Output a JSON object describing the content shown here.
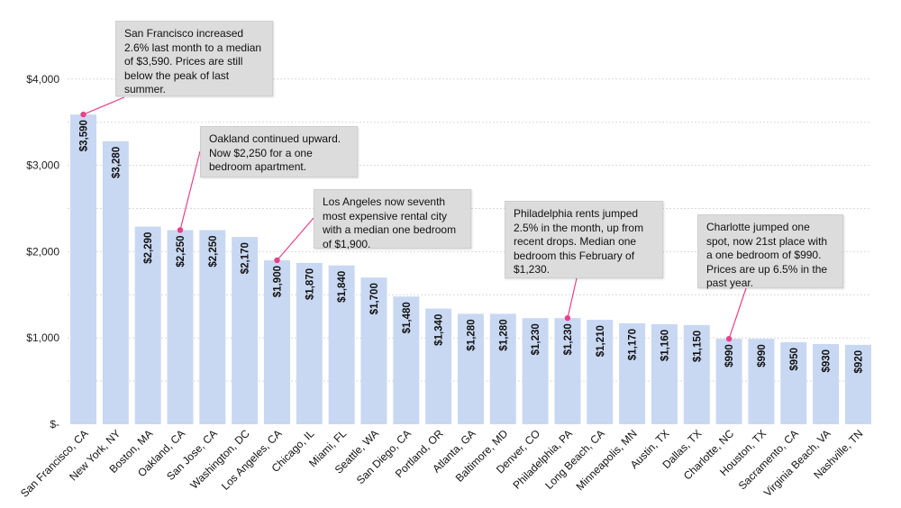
{
  "chart_data": {
    "type": "bar",
    "title": "",
    "xlabel": "",
    "ylabel": "",
    "ylim": [
      0,
      4000
    ],
    "yticks": [
      0,
      1000,
      2000,
      3000,
      4000
    ],
    "ytick_labels": [
      "$-",
      "$1,000",
      "$2,000",
      "$3,000",
      "$4,000"
    ],
    "grid": true,
    "bar_color": "#c9d8f2",
    "accent_color": "#e8418a",
    "categories": [
      "San Francisco, CA",
      "New York, NY",
      "Boston, MA",
      "Oakland, CA",
      "San Jose, CA",
      "Washington, DC",
      "Los Angeles, CA",
      "Chicago, IL",
      "Miami, FL",
      "Seattle, WA",
      "San Diego, CA",
      "Portland, OR",
      "Atlanta, GA",
      "Baltimore, MD",
      "Denver, CO",
      "Philadelphia, PA",
      "Long Beach, CA",
      "Minneapolis, MN",
      "Austin, TX",
      "Dallas, TX",
      "Charlotte, NC",
      "Houston, TX",
      "Sacramento, CA",
      "Virginia Beach, VA",
      "Nashville, TN"
    ],
    "values": [
      3590,
      3280,
      2290,
      2250,
      2250,
      2170,
      1900,
      1870,
      1840,
      1700,
      1480,
      1340,
      1280,
      1280,
      1230,
      1230,
      1210,
      1170,
      1160,
      1150,
      990,
      990,
      950,
      930,
      920
    ],
    "value_labels": [
      "$3,590",
      "$3,280",
      "$2,290",
      "$2,250",
      "$2,250",
      "$2,170",
      "$1,900",
      "$1,870",
      "$1,840",
      "$1,700",
      "$1,480",
      "$1,340",
      "$1,280",
      "$1,280",
      "$1,230",
      "$1,230",
      "$1,210",
      "$1,170",
      "$1,160",
      "$1,150",
      "$990",
      "$990",
      "$950",
      "$930",
      "$920"
    ],
    "annotations": [
      {
        "category": "San Francisco, CA",
        "text": "San Francisco increased 2.6% last month to a median of $3,590. Prices are still below the peak of last summer."
      },
      {
        "category": "Oakland, CA",
        "text": "Oakland continued upward. Now $2,250 for a one bedroom apartment."
      },
      {
        "category": "Los Angeles, CA",
        "text": "Los Angeles now seventh most expensive rental city with a median one bedroom of $1,900."
      },
      {
        "category": "Philadelphia, PA",
        "text": "Philadelphia rents jumped 2.5% in the month, up from recent drops. Median one bedroom this February of $1,230."
      },
      {
        "category": "Charlotte, NC",
        "text": "Charlotte jumped one spot, now 21st place with a one bedroom of $990. Prices are up 6.5% in the past year."
      }
    ]
  }
}
